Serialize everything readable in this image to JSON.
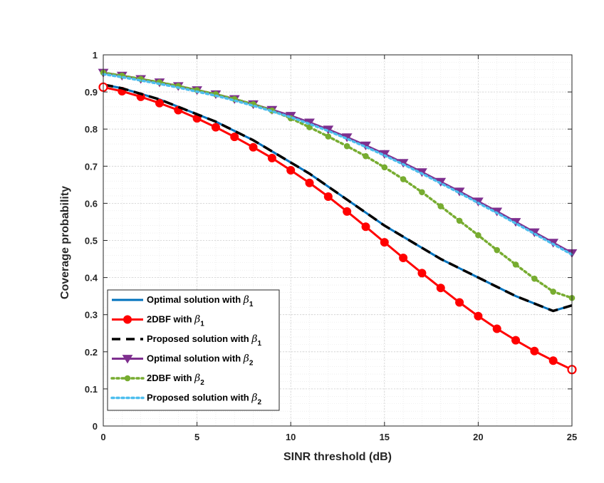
{
  "chart_data": {
    "type": "line",
    "xlabel": "SINR threshold (dB)",
    "ylabel": "Coverage probability",
    "xlim": [
      0,
      25
    ],
    "ylim": [
      0,
      1
    ],
    "xticks": [
      "0",
      "5",
      "10",
      "15",
      "20",
      "25"
    ],
    "yticks": [
      "0",
      "0.1",
      "0.2",
      "0.3",
      "0.4",
      "0.5",
      "0.6",
      "0.7",
      "0.8",
      "0.9",
      "1"
    ],
    "grid": true,
    "legend_position": "bottom-left",
    "x": [
      0,
      1,
      2,
      3,
      4,
      5,
      6,
      7,
      8,
      9,
      10,
      11,
      12,
      13,
      14,
      15,
      16,
      17,
      18,
      19,
      20,
      21,
      22,
      23,
      24,
      25
    ],
    "series": [
      {
        "name": "Optimal solution with β1",
        "label": "Optimal solution with ",
        "symbol": "β",
        "subscript": "1",
        "color": "#0072BD",
        "style": "solid",
        "marker": "none",
        "values": [
          0.92,
          0.91,
          0.895,
          0.88,
          0.86,
          0.84,
          0.82,
          0.795,
          0.77,
          0.74,
          0.71,
          0.68,
          0.645,
          0.61,
          0.575,
          0.54,
          0.51,
          0.48,
          0.45,
          0.425,
          0.4,
          0.375,
          0.35,
          0.33,
          0.31,
          0.325
        ]
      },
      {
        "name": "2DBF with β1",
        "label": "2DBF with ",
        "symbol": "β",
        "subscript": "1",
        "color": "#FF0000",
        "style": "solid",
        "marker": "circle",
        "values": [
          0.913,
          0.902,
          0.887,
          0.87,
          0.851,
          0.829,
          0.805,
          0.779,
          0.751,
          0.722,
          0.689,
          0.655,
          0.618,
          0.578,
          0.537,
          0.495,
          0.453,
          0.412,
          0.372,
          0.333,
          0.296,
          0.262,
          0.231,
          0.202,
          0.176,
          0.152
        ]
      },
      {
        "name": "Proposed solution with β1",
        "label": "Proposed solution with ",
        "symbol": "β",
        "subscript": "1",
        "color": "#000000",
        "style": "dashed",
        "marker": "none",
        "values": [
          0.92,
          0.91,
          0.895,
          0.88,
          0.86,
          0.84,
          0.82,
          0.795,
          0.77,
          0.74,
          0.71,
          0.68,
          0.645,
          0.61,
          0.575,
          0.54,
          0.51,
          0.48,
          0.45,
          0.425,
          0.4,
          0.375,
          0.35,
          0.33,
          0.31,
          0.325
        ]
      },
      {
        "name": "Optimal solution with β2",
        "label": "Optimal solution with ",
        "symbol": "β",
        "subscript": "2",
        "color": "#7E2F8E",
        "style": "solid",
        "marker": "triangle-down",
        "values": [
          0.952,
          0.944,
          0.935,
          0.926,
          0.916,
          0.905,
          0.894,
          0.881,
          0.867,
          0.852,
          0.836,
          0.818,
          0.799,
          0.778,
          0.756,
          0.733,
          0.709,
          0.684,
          0.658,
          0.632,
          0.605,
          0.578,
          0.55,
          0.522,
          0.494,
          0.466
        ]
      },
      {
        "name": "2DBF with β2",
        "label": "2DBF with ",
        "symbol": "β",
        "subscript": "2",
        "color": "#77AC30",
        "style": "dotted",
        "marker": "circle-small",
        "values": [
          0.952,
          0.944,
          0.935,
          0.926,
          0.916,
          0.905,
          0.894,
          0.881,
          0.867,
          0.85,
          0.829,
          0.805,
          0.78,
          0.754,
          0.727,
          0.697,
          0.665,
          0.63,
          0.592,
          0.553,
          0.514,
          0.474,
          0.435,
          0.397,
          0.362,
          0.345
        ]
      },
      {
        "name": "Proposed solution with β2",
        "label": "Proposed solution with ",
        "symbol": "β",
        "subscript": "2",
        "color": "#4DBEEE",
        "style": "dotted",
        "marker": "none",
        "values": [
          0.948,
          0.94,
          0.931,
          0.922,
          0.912,
          0.901,
          0.89,
          0.877,
          0.863,
          0.848,
          0.832,
          0.814,
          0.795,
          0.774,
          0.752,
          0.729,
          0.705,
          0.68,
          0.654,
          0.628,
          0.601,
          0.574,
          0.546,
          0.518,
          0.49,
          0.462
        ]
      }
    ]
  }
}
